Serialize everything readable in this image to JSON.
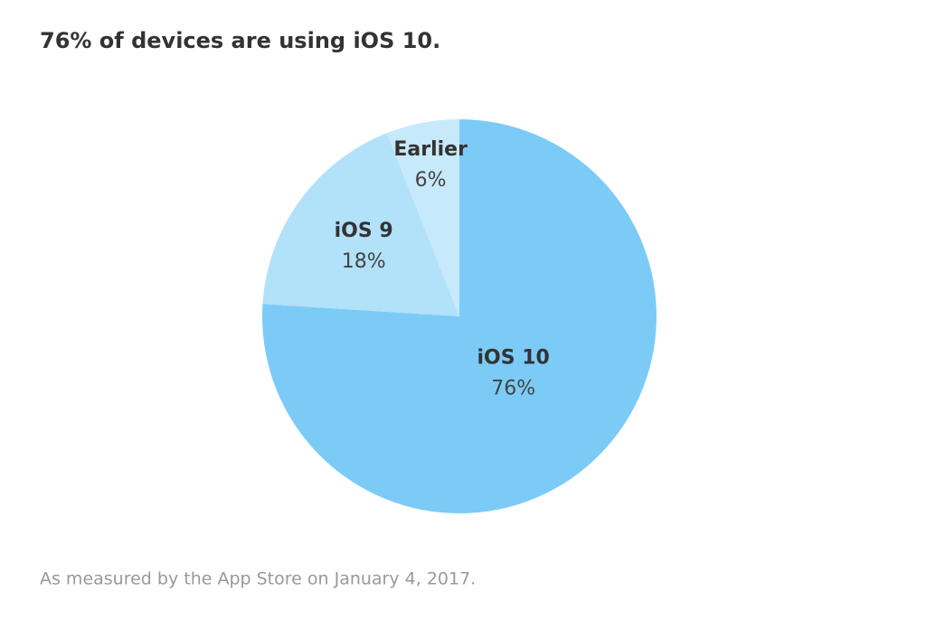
{
  "chart_data": {
    "type": "pie",
    "title": "76% of devices are using iOS 10.",
    "footnote": "As measured by the App Store on January 4, 2017.",
    "categories": [
      "iOS 10",
      "iOS 9",
      "Earlier"
    ],
    "values": [
      76,
      18,
      6
    ],
    "value_labels": [
      "76%",
      "18%",
      "6%"
    ],
    "colors": [
      "#7ccbf7",
      "#b2e1fa",
      "#c6e9fb"
    ]
  }
}
